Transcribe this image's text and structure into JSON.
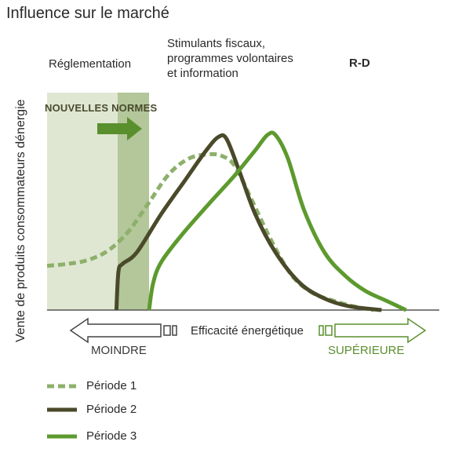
{
  "title": "Influence sur le marché",
  "y_axis_label": "Vente de produits consommateurs dénergie",
  "x_axis_label": "Efficacité énergétique",
  "zones": {
    "regulation": "Réglementation",
    "incentives_line1": "Stimulants fiscaux,",
    "incentives_line2": "programmes volontaires",
    "incentives_line3": "et information",
    "rd": "R-D"
  },
  "new_standards": "NOUVELLES NORMES",
  "x_ends": {
    "lesser": "MOINDRE",
    "greater": "SUPÉRIEURE"
  },
  "legend": [
    "Période 1",
    "Période 2",
    "Période 3"
  ],
  "colors": {
    "period1": "#8db06b",
    "period2": "#4a4a2a",
    "period3": "#5d9a2e",
    "regulation_zone": "#dfe7d2",
    "new_standards_zone": "#b3c79a",
    "arrow_green": "#5a8f2e"
  },
  "chart_data": {
    "type": "line",
    "title": "Influence sur le marché",
    "xlabel": "Efficacité énergétique",
    "ylabel": "Vente de produits consommateurs dénergie",
    "axis_scale": "qualitative (no numeric ticks); x from MOINDRE to SUPÉRIEURE",
    "series": [
      {
        "name": "Période 1",
        "style": "dashed",
        "x": [
          0,
          0.5,
          1,
          1.5,
          2,
          2.5,
          3,
          3.5,
          4,
          4.3,
          4.6,
          5,
          5.5,
          6,
          6.5,
          7,
          7.5,
          8
        ],
        "y": [
          0.23,
          0.24,
          0.26,
          0.31,
          0.41,
          0.56,
          0.71,
          0.79,
          0.81,
          0.8,
          0.75,
          0.58,
          0.36,
          0.18,
          0.09,
          0.05,
          0.02,
          0.0
        ]
      },
      {
        "name": "Période 2",
        "style": "solid",
        "x": [
          1.7,
          1.75,
          1.85,
          2.2,
          2.8,
          3.4,
          3.9,
          4.2,
          4.4,
          4.7,
          5.1,
          5.6,
          6.2,
          6.8,
          7.4,
          8.2
        ],
        "y": [
          0.0,
          0.2,
          0.24,
          0.3,
          0.5,
          0.68,
          0.83,
          0.9,
          0.89,
          0.73,
          0.5,
          0.3,
          0.14,
          0.06,
          0.02,
          0.0
        ]
      },
      {
        "name": "Période 3",
        "style": "solid",
        "x": [
          2.5,
          2.6,
          2.8,
          3.3,
          4.0,
          4.6,
          5.1,
          5.4,
          5.6,
          5.9,
          6.3,
          6.8,
          7.3,
          7.8,
          8.3,
          8.8
        ],
        "y": [
          0.0,
          0.14,
          0.25,
          0.39,
          0.56,
          0.7,
          0.83,
          0.91,
          0.91,
          0.79,
          0.52,
          0.3,
          0.18,
          0.1,
          0.05,
          0.0
        ]
      }
    ]
  }
}
